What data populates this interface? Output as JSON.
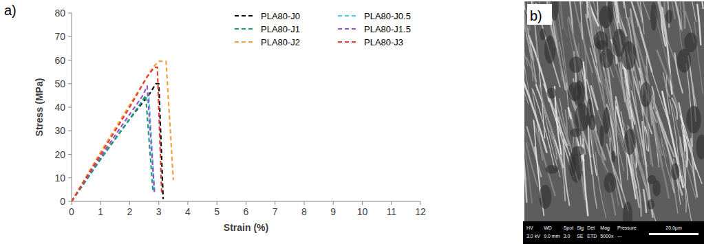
{
  "chart_data": {
    "type": "line",
    "label": "a)",
    "x_label": "Strain (%)",
    "y_label": "Stress (MPa)",
    "xlim": [
      0,
      12
    ],
    "xticks": [
      0,
      1,
      2,
      3,
      4,
      5,
      6,
      7,
      8,
      9,
      10,
      11,
      12
    ],
    "ylim": [
      0,
      80
    ],
    "yticks": [
      0,
      10,
      20,
      30,
      40,
      50,
      60,
      70,
      80
    ],
    "grid": false,
    "legend": "upper right",
    "series": [
      {
        "name": "PLA80-J0",
        "color": "#000000",
        "line_style": "dashed",
        "x": [
          0,
          1,
          2,
          2.7,
          2.9,
          3.0,
          3.15
        ],
        "values": [
          0,
          18,
          35,
          46,
          50,
          50,
          1
        ]
      },
      {
        "name": "PLA80-J0.5",
        "color": "#3fc3e6",
        "line_style": "dashed",
        "x": [
          0,
          1,
          2,
          2.5,
          2.65,
          2.85
        ],
        "values": [
          0,
          18,
          35,
          44,
          46,
          5
        ]
      },
      {
        "name": "PLA80-J1",
        "color": "#1e9e78",
        "line_style": "dashed",
        "x": [
          0,
          1,
          2,
          2.4,
          2.55,
          2.8
        ],
        "values": [
          0,
          18,
          35,
          42,
          45,
          4
        ]
      },
      {
        "name": "PLA80-J1.5",
        "color": "#9a4fc2",
        "line_style": "dashed",
        "x": [
          0,
          1,
          2,
          2.45,
          2.6,
          2.85
        ],
        "values": [
          0,
          19,
          37,
          45,
          49,
          4
        ]
      },
      {
        "name": "PLA80-J2",
        "color": "#f5a03c",
        "line_style": "dashed",
        "x": [
          0,
          1,
          2,
          2.8,
          3.0,
          3.25,
          3.5
        ],
        "values": [
          0,
          21,
          41,
          57,
          59.5,
          59.5,
          9
        ]
      },
      {
        "name": "PLA80-J3",
        "color": "#e0402f",
        "line_style": "dashed",
        "x": [
          0,
          1,
          2,
          2.6,
          2.85,
          2.95,
          3.1
        ],
        "values": [
          0,
          20,
          40,
          53,
          57,
          57,
          3
        ]
      }
    ]
  },
  "micrograph": {
    "label": "b)",
    "info_headers": [
      "HV",
      "WD",
      "Spot",
      "Sig",
      "Det",
      "Mag",
      "Pressure"
    ],
    "info_values": [
      "3.0 kV",
      "9.0 mm",
      "3.0",
      "SE",
      "ETD",
      "5000x",
      "---"
    ],
    "scale_bar": "20.0µm"
  }
}
